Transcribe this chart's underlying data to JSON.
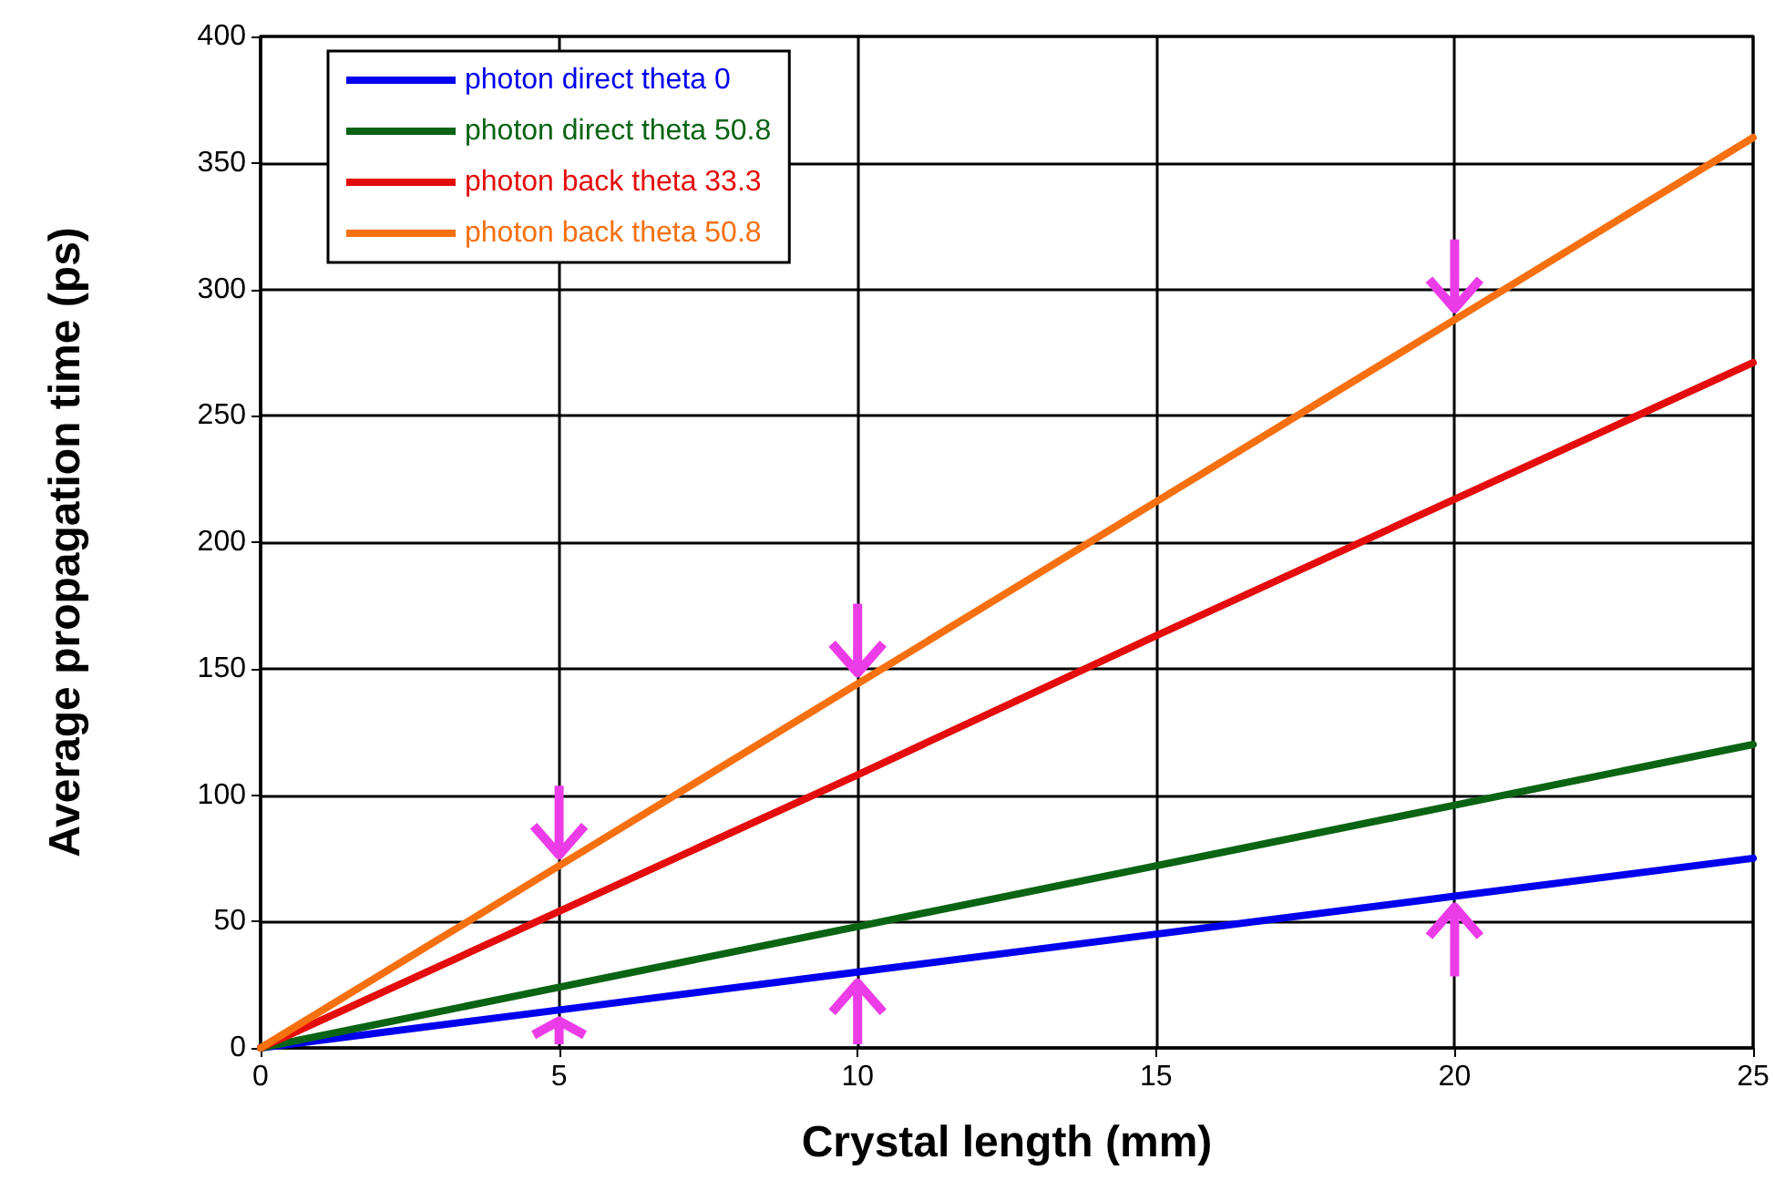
{
  "chart_data": {
    "type": "line",
    "xlabel": "Crystal length (mm)",
    "ylabel": "Average propagation time (ps)",
    "x": [
      0,
      5,
      10,
      15,
      20,
      25
    ],
    "series": [
      {
        "name": "photon direct theta 0",
        "color": "#0000ee",
        "values": [
          0,
          15,
          30,
          45,
          60,
          75
        ]
      },
      {
        "name": "photon direct theta 50.8",
        "color": "#0a6414",
        "values": [
          0,
          24,
          48,
          72,
          96,
          120
        ]
      },
      {
        "name": "photon back theta 33.3",
        "color": "#e40c0c",
        "values": [
          0,
          54,
          108,
          163,
          217,
          271
        ]
      },
      {
        "name": "photon back theta 50.8",
        "color": "#f67010",
        "values": [
          0,
          72,
          144,
          216,
          288,
          360
        ]
      }
    ],
    "xlim": [
      0,
      25
    ],
    "xticks": [
      0,
      5,
      10,
      15,
      20,
      25
    ],
    "ylim": [
      0,
      400
    ],
    "yticks": [
      0,
      50,
      100,
      150,
      200,
      250,
      300,
      350,
      400
    ],
    "grid": true,
    "legend": "top left",
    "marker": "none",
    "line_style": "solid"
  }
}
